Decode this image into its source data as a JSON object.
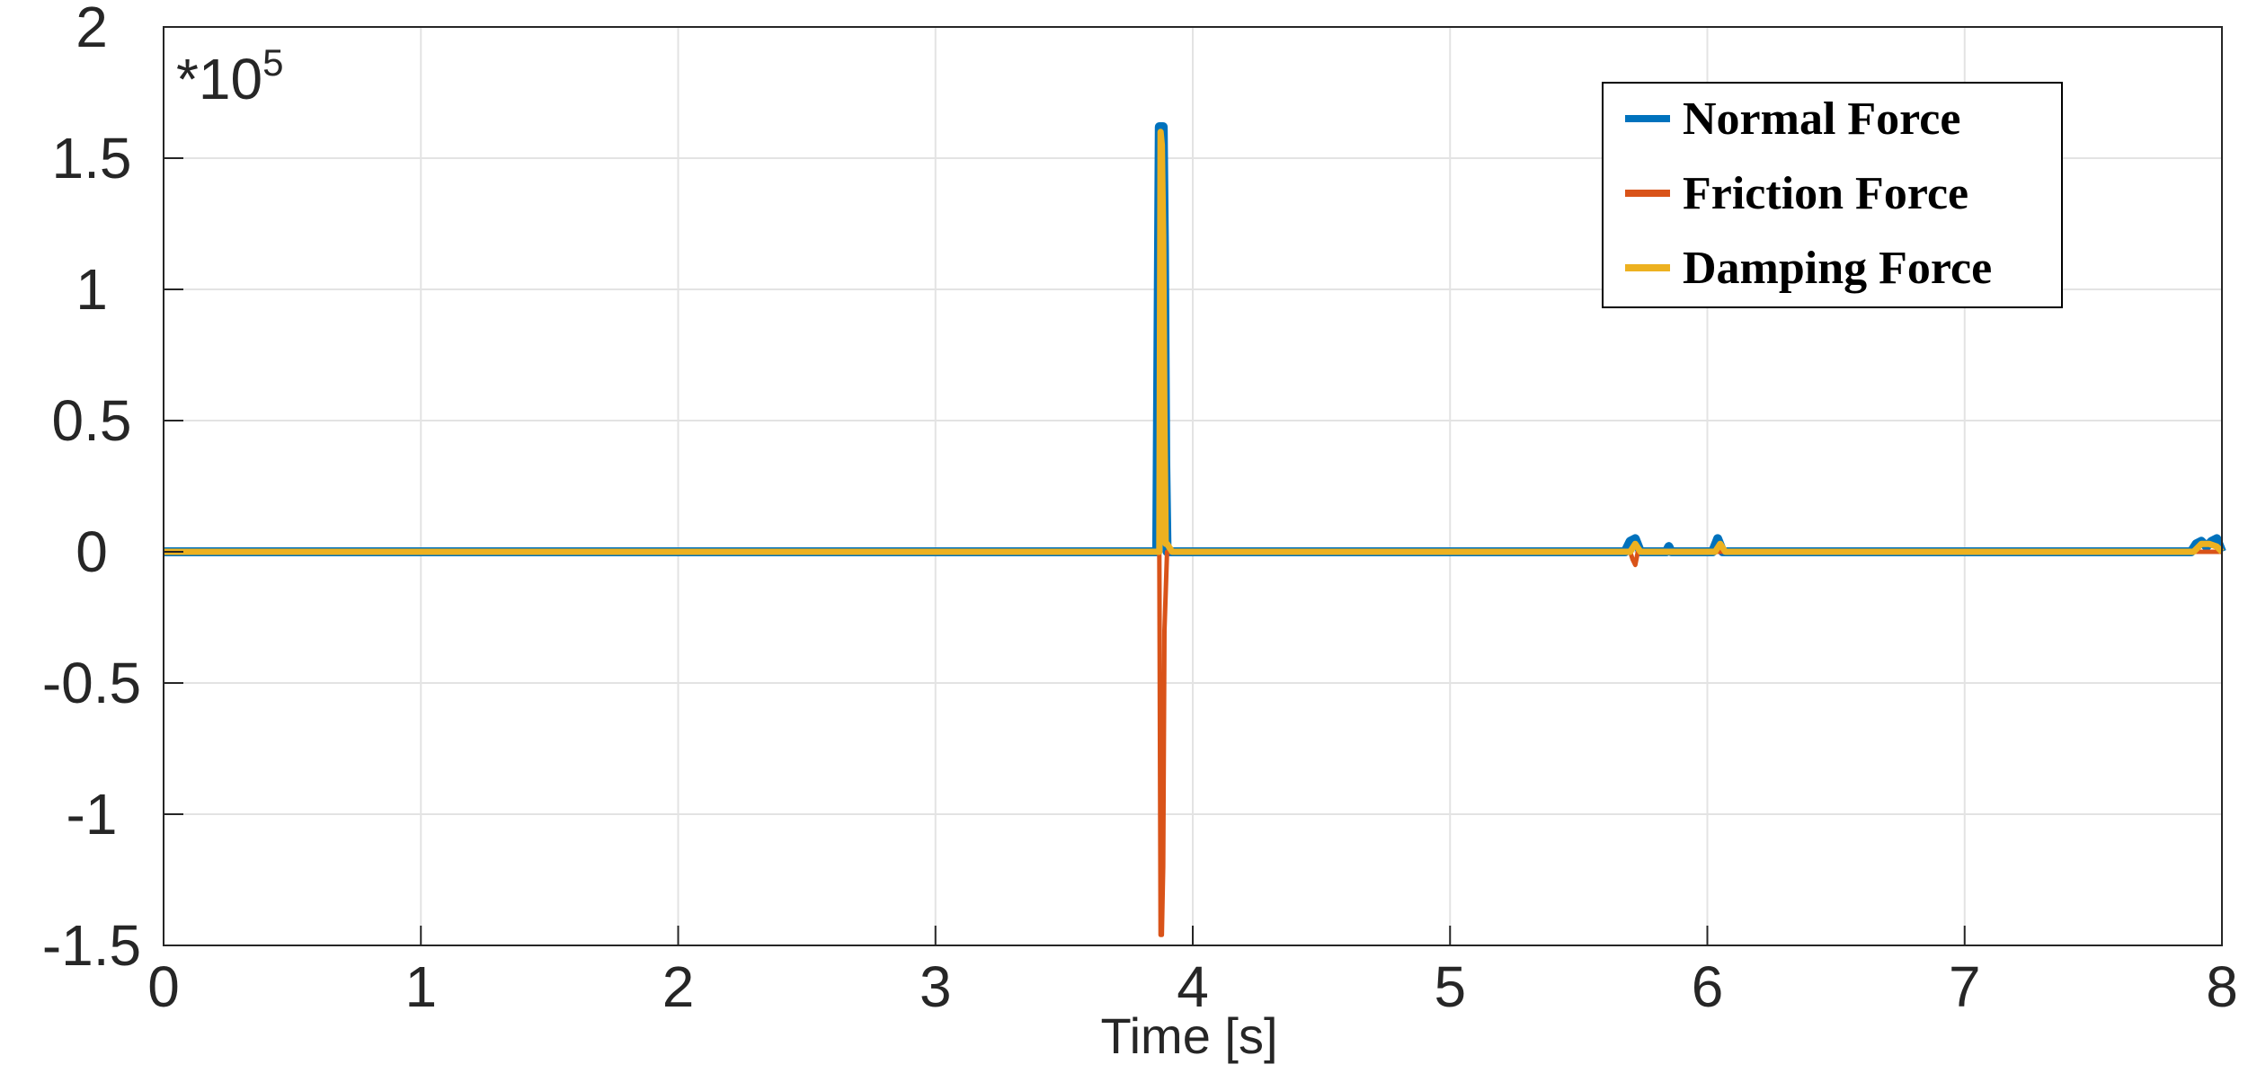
{
  "chart_data": {
    "type": "line",
    "xlabel": "Time [s]",
    "ylabel": "",
    "exponent_label": {
      "prefix": "*10",
      "power": "5"
    },
    "xlim": [
      0,
      8
    ],
    "ylim": [
      -1.5,
      2
    ],
    "xticks": [
      0,
      1,
      2,
      3,
      4,
      5,
      6,
      7,
      8
    ],
    "yticks": [
      -1.5,
      -1,
      -0.5,
      0,
      0.5,
      1,
      1.5,
      2
    ],
    "xtick_labels": [
      "0",
      "1",
      "2",
      "3",
      "4",
      "5",
      "6",
      "7",
      "8"
    ],
    "ytick_labels": [
      "-1.5",
      "-1",
      "-0.5",
      "0",
      "0.5",
      "1",
      "1.5",
      "2"
    ],
    "grid": true,
    "legend_position": "top-right",
    "series": [
      {
        "name": "Normal Force",
        "color": "#0072BD",
        "x": [
          0,
          3.86,
          3.87,
          3.875,
          3.885,
          3.89,
          3.895,
          3.9,
          3.92,
          5.68,
          5.7,
          5.72,
          5.74,
          5.84,
          5.85,
          5.86,
          6.02,
          6.04,
          6.06,
          7.88,
          7.9,
          7.92,
          7.94,
          7.96,
          7.98,
          8.0
        ],
        "y": [
          0,
          0,
          1.62,
          1.62,
          1.62,
          1.15,
          0.35,
          0,
          0,
          0,
          0.04,
          0.05,
          0,
          0,
          0.02,
          0,
          0,
          0.05,
          0,
          0,
          0.03,
          0.04,
          0.02,
          0.04,
          0.05,
          0
        ]
      },
      {
        "name": "Friction Force",
        "color": "#D95319",
        "x": [
          0,
          3.87,
          3.875,
          3.88,
          3.885,
          3.89,
          3.9,
          5.7,
          5.71,
          5.72,
          5.73,
          8.0
        ],
        "y": [
          0,
          0,
          -1.46,
          -1.46,
          -1.2,
          -0.3,
          0,
          0,
          -0.03,
          -0.05,
          0,
          0
        ]
      },
      {
        "name": "Damping Force",
        "color": "#EDB120",
        "x": [
          0,
          3.87,
          3.875,
          3.88,
          3.885,
          3.89,
          3.895,
          3.9,
          3.92,
          5.7,
          5.72,
          5.74,
          6.03,
          6.05,
          6.07,
          7.89,
          7.92,
          7.95,
          7.98,
          8.0
        ],
        "y": [
          0,
          0,
          1.6,
          1.55,
          1.2,
          0.5,
          0.03,
          0.03,
          0,
          0,
          0.03,
          0,
          0,
          0.03,
          0,
          0,
          0.03,
          0.03,
          0.02,
          0
        ]
      }
    ]
  }
}
